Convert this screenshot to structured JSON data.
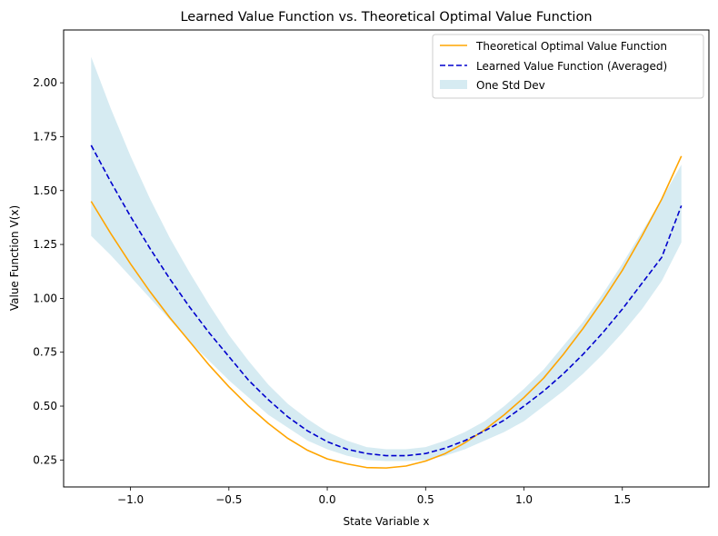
{
  "chart_data": {
    "type": "line",
    "title": "Learned Value Function vs. Theoretical Optimal Value Function",
    "xlabel": "State Variable x",
    "ylabel": "Value Function V(x)",
    "xlim": [
      -1.34,
      1.94
    ],
    "ylim": [
      0.125,
      2.245
    ],
    "xticks": [
      -1.0,
      -0.5,
      0.0,
      0.5,
      1.0,
      1.5
    ],
    "xtick_labels": [
      "−1.0",
      "−0.5",
      "0.0",
      "0.5",
      "1.0",
      "1.5"
    ],
    "yticks": [
      0.25,
      0.5,
      0.75,
      1.0,
      1.25,
      1.5,
      1.75,
      2.0
    ],
    "ytick_labels": [
      "0.25",
      "0.50",
      "0.75",
      "1.00",
      "1.25",
      "1.50",
      "1.75",
      "2.00"
    ],
    "grid": false,
    "legend_position": "top-right",
    "x": [
      -1.2,
      -1.1,
      -1.0,
      -0.9,
      -0.8,
      -0.7,
      -0.6,
      -0.5,
      -0.4,
      -0.3,
      -0.2,
      -0.1,
      0.0,
      0.1,
      0.2,
      0.3,
      0.4,
      0.5,
      0.6,
      0.7,
      0.8,
      0.9,
      1.0,
      1.1,
      1.2,
      1.3,
      1.4,
      1.5,
      1.6,
      1.7,
      1.8
    ],
    "series": [
      {
        "name": "Theoretical Optimal Value Function",
        "color": "#ffa500",
        "style": "solid",
        "values": [
          1.45,
          1.3,
          1.16,
          1.03,
          0.91,
          0.8,
          0.69,
          0.59,
          0.5,
          0.42,
          0.35,
          0.295,
          0.255,
          0.232,
          0.215,
          0.213,
          0.222,
          0.245,
          0.28,
          0.33,
          0.39,
          0.46,
          0.54,
          0.63,
          0.74,
          0.86,
          0.99,
          1.13,
          1.29,
          1.46,
          1.66
        ]
      },
      {
        "name": "Learned Value Function (Averaged)",
        "color": "#0000cd",
        "style": "dashed",
        "values": [
          1.71,
          1.54,
          1.38,
          1.23,
          1.09,
          0.96,
          0.84,
          0.73,
          0.62,
          0.53,
          0.45,
          0.385,
          0.335,
          0.3,
          0.28,
          0.27,
          0.27,
          0.28,
          0.305,
          0.34,
          0.385,
          0.435,
          0.5,
          0.57,
          0.65,
          0.74,
          0.84,
          0.95,
          1.07,
          1.19,
          1.43
        ]
      }
    ],
    "band": {
      "name": "One Std Dev",
      "color": "#add8e6",
      "upper": [
        2.12,
        1.88,
        1.66,
        1.46,
        1.28,
        1.12,
        0.97,
        0.83,
        0.71,
        0.6,
        0.51,
        0.44,
        0.38,
        0.34,
        0.31,
        0.3,
        0.3,
        0.31,
        0.34,
        0.38,
        0.43,
        0.5,
        0.58,
        0.67,
        0.78,
        0.89,
        1.02,
        1.16,
        1.31,
        1.46,
        1.62
      ],
      "lower": [
        1.29,
        1.2,
        1.1,
        1.0,
        0.9,
        0.8,
        0.71,
        0.62,
        0.54,
        0.46,
        0.4,
        0.34,
        0.3,
        0.27,
        0.25,
        0.245,
        0.245,
        0.25,
        0.27,
        0.3,
        0.34,
        0.38,
        0.43,
        0.5,
        0.57,
        0.65,
        0.74,
        0.84,
        0.95,
        1.08,
        1.26
      ]
    }
  }
}
